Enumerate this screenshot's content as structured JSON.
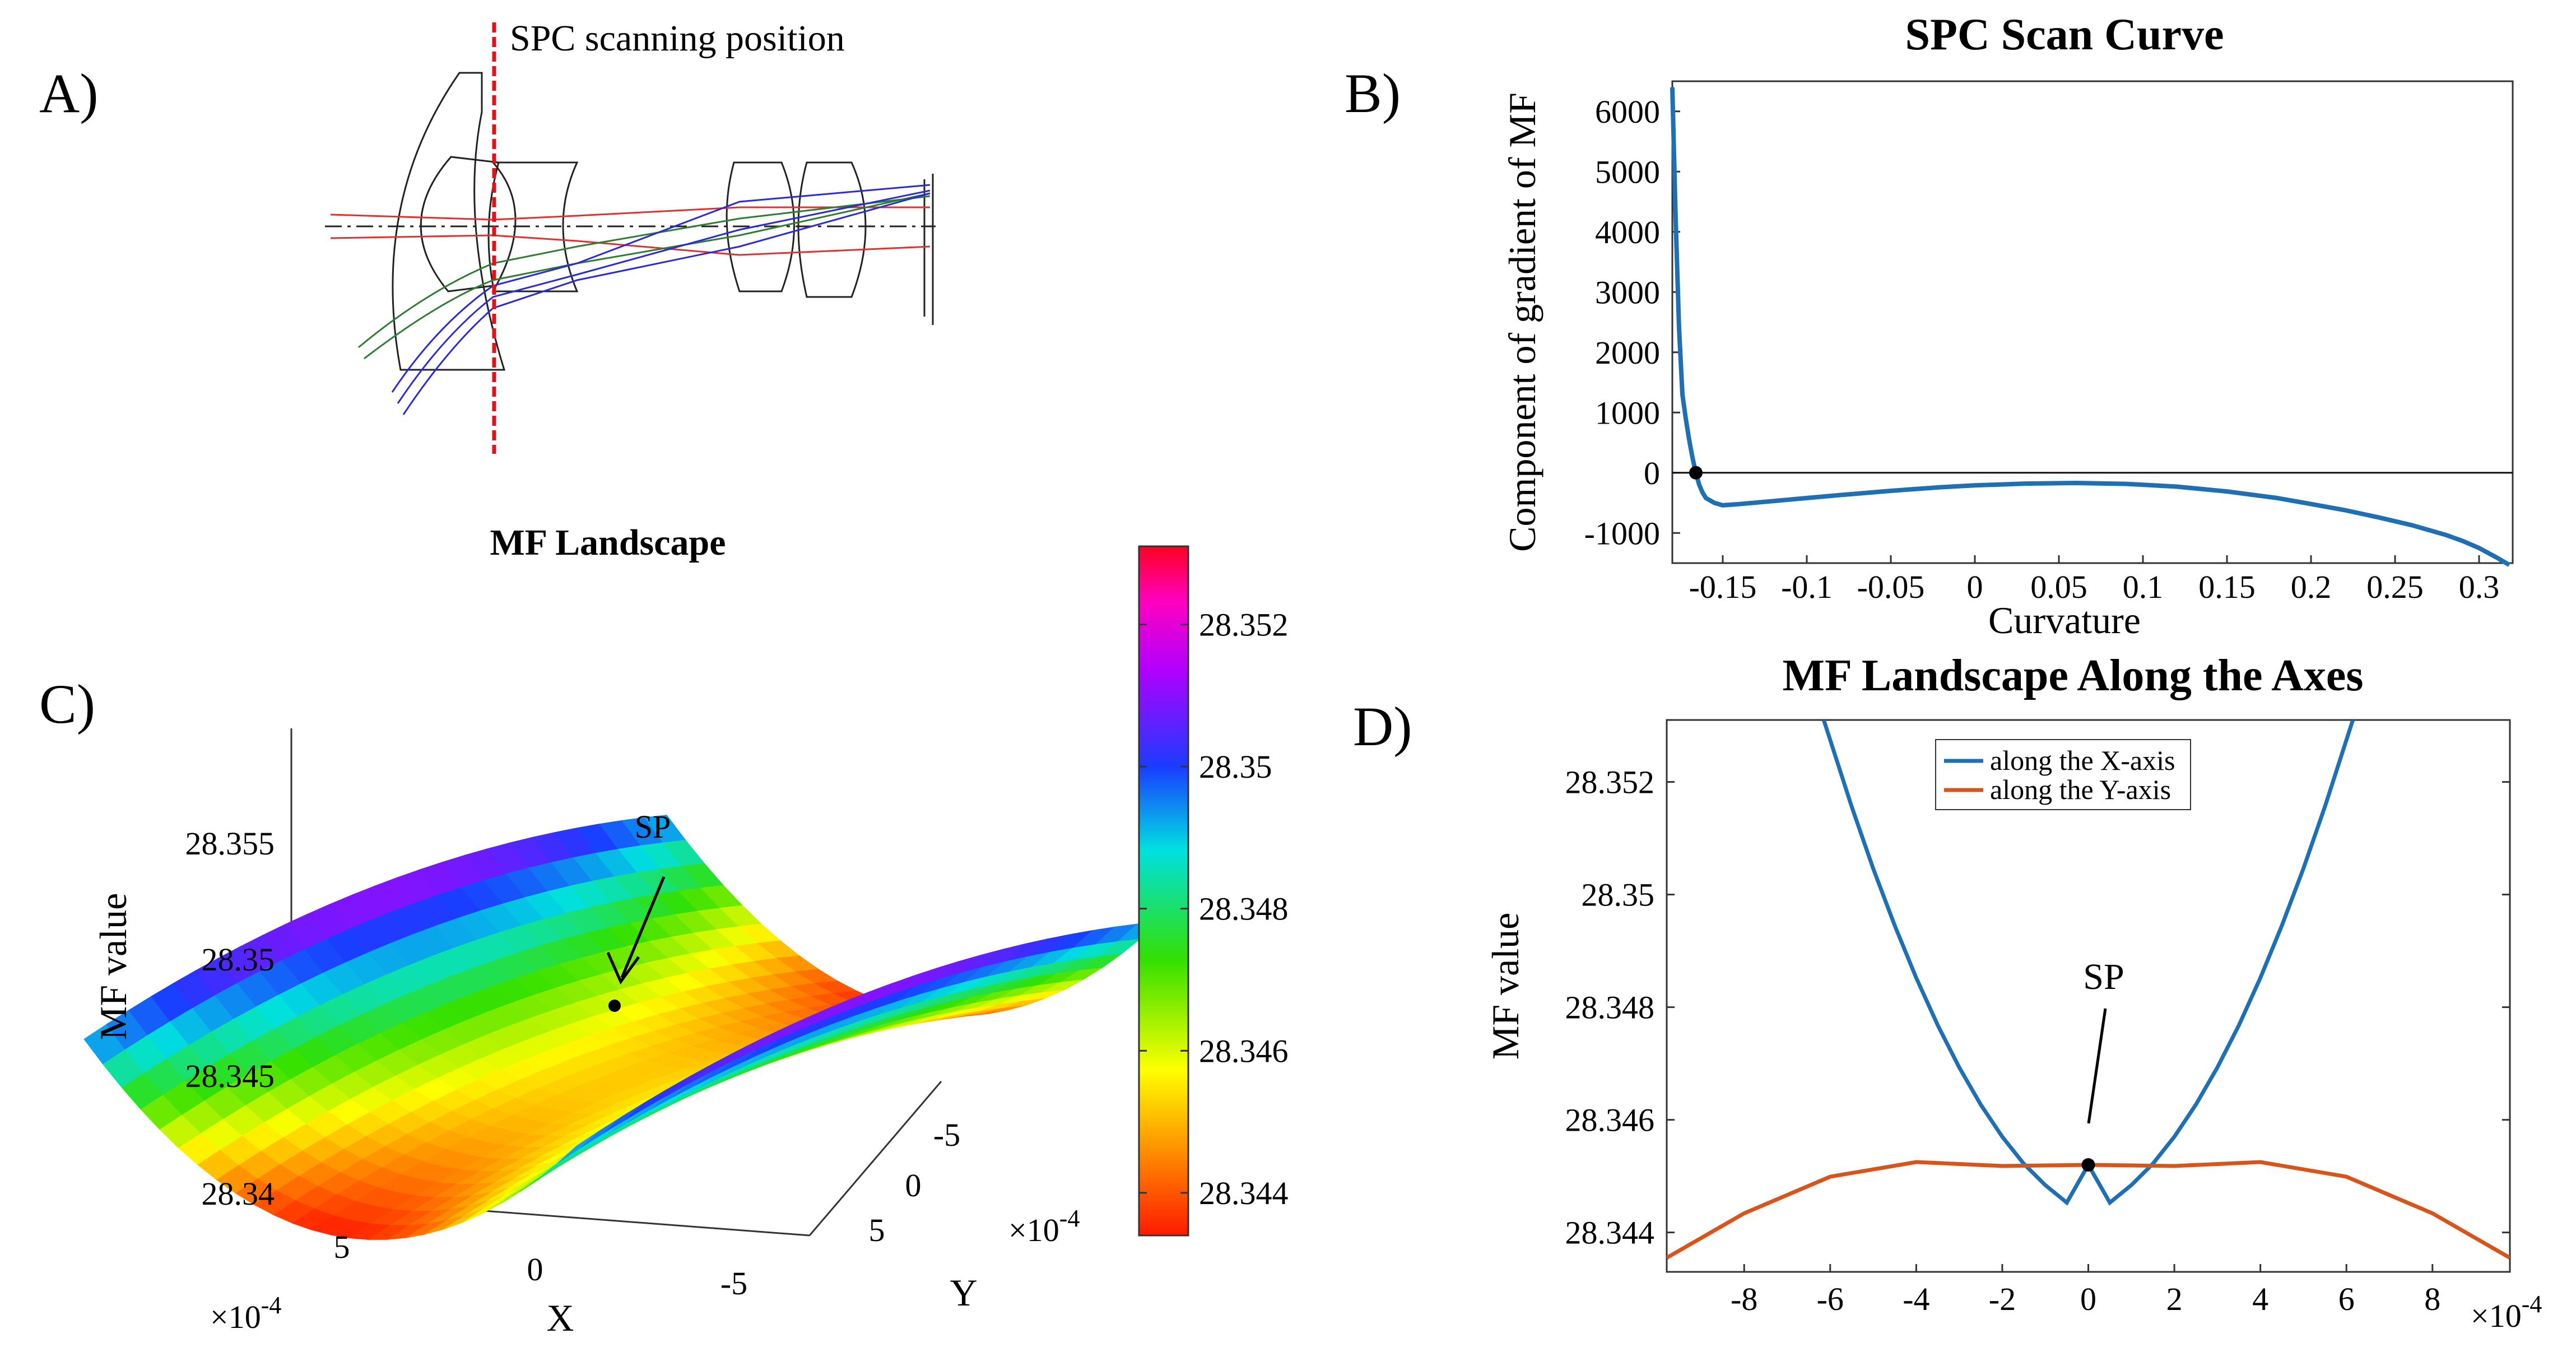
{
  "panels": {
    "a": {
      "label": "A)",
      "annotation": "SPC scanning position"
    },
    "b": {
      "label": "B)"
    },
    "c": {
      "label": "C)"
    },
    "d": {
      "label": "D)"
    }
  },
  "colors": {
    "blue_curve": "#1f6fb5",
    "orange_curve": "#d9541a",
    "scan_line": "#e0131a",
    "ray_red": "#e03030",
    "ray_green": "#2e7d32",
    "ray_blue": "#2a2ad8"
  },
  "chart_data": [
    {
      "id": "spc-scan",
      "type": "line",
      "title": "SPC Scan Curve",
      "xlabel": "Curvature",
      "ylabel": "Component of gradient of MF",
      "xlim": [
        -0.18,
        0.32
      ],
      "ylim": [
        -1500,
        6500
      ],
      "xticks": [
        -0.15,
        -0.1,
        -0.05,
        0,
        0.05,
        0.1,
        0.15,
        0.2,
        0.25,
        0.3
      ],
      "xtick_labels": [
        "-0.15",
        "-0.1",
        "-0.05",
        "0",
        "0.05",
        "0.1",
        "0.15",
        "0.2",
        "0.25",
        "0.3"
      ],
      "yticks": [
        -1000,
        0,
        1000,
        2000,
        3000,
        4000,
        5000,
        6000
      ],
      "ytick_labels": [
        "-1000",
        "0",
        "1000",
        "2000",
        "3000",
        "4000",
        "5000",
        "6000"
      ],
      "zero_line": true,
      "series": [
        {
          "x": [
            -0.18,
            -0.178,
            -0.176,
            -0.174,
            -0.172,
            -0.17,
            -0.168,
            -0.166,
            -0.164,
            -0.162,
            -0.16,
            -0.155,
            -0.15,
            -0.14,
            -0.12,
            -0.1,
            -0.08,
            -0.05,
            -0.02,
            0,
            0.03,
            0.06,
            0.09,
            0.12,
            0.15,
            0.18,
            0.2,
            0.22,
            0.24,
            0.26,
            0.28,
            0.29,
            0.3,
            0.31,
            0.318
          ],
          "y": [
            6400,
            4200,
            2400,
            1300,
            900,
            550,
            250,
            0,
            -200,
            -330,
            -420,
            -500,
            -540,
            -520,
            -470,
            -420,
            -370,
            -300,
            -240,
            -210,
            -180,
            -170,
            -185,
            -230,
            -310,
            -420,
            -520,
            -620,
            -740,
            -870,
            -1030,
            -1130,
            -1250,
            -1400,
            -1530
          ]
        }
      ],
      "highlight_point": {
        "x": -0.166,
        "y": 0
      }
    },
    {
      "id": "mf-landscape-3d",
      "type": "surface",
      "title": "MF Landscape",
      "xlabel": "X",
      "ylabel": "Y",
      "zlabel": "MF value",
      "x_range": [
        -0.0007,
        0.0007
      ],
      "y_range": [
        -0.0007,
        0.0007
      ],
      "x_ticks": [
        "5",
        "0",
        "-5"
      ],
      "y_ticks": [
        "-5",
        "0",
        "5"
      ],
      "z_ticks": [
        "28.355",
        "28.35",
        "28.345",
        "28.34"
      ],
      "x_multiplier": "×10",
      "y_multiplier": "×10",
      "multiplier_exponent": "-4",
      "annotation": "SP",
      "saddle_point": {
        "x": 0,
        "y": 0,
        "z": 28.3452
      },
      "colorbar": {
        "ticks": [
          "28.352",
          "28.35",
          "28.348",
          "28.346",
          "28.344"
        ],
        "tick_values": [
          28.352,
          28.35,
          28.348,
          28.346,
          28.344
        ],
        "range": [
          28.3434,
          28.3531
        ]
      }
    },
    {
      "id": "mf-along-axes",
      "type": "line",
      "title": "MF Landscape Along the Axes",
      "xlabel": "",
      "ylabel": "MF value",
      "xlim": [
        -9.8,
        9.8
      ],
      "ylim": [
        28.3433,
        28.3531
      ],
      "x_multiplier": "×10",
      "multiplier_exponent": "-4",
      "xticks": [
        -8,
        -6,
        -4,
        -2,
        0,
        2,
        4,
        6,
        8
      ],
      "xtick_labels": [
        "-8",
        "-6",
        "-4",
        "-2",
        "0",
        "2",
        "4",
        "6",
        "8"
      ],
      "yticks": [
        28.344,
        28.346,
        28.348,
        28.35,
        28.352
      ],
      "ytick_labels": [
        "28.344",
        "28.346",
        "28.348",
        "28.35",
        "28.352"
      ],
      "series": [
        {
          "name": "along the X-axis",
          "color": "#1f6fb5",
          "x": [
            -6.15,
            -5.5,
            -5,
            -4.5,
            -4,
            -3.5,
            -3,
            -2.5,
            -2,
            -1.5,
            -1,
            -0.5,
            0,
            0.5,
            1,
            1.5,
            2,
            2.5,
            3,
            3.5,
            4,
            4.5,
            5,
            5.5,
            6.15
          ],
          "y": [
            28.3531,
            28.35156,
            28.35046,
            28.34945,
            28.34852,
            28.34768,
            28.34693,
            28.34627,
            28.3457,
            28.34522,
            28.34484,
            28.34453,
            28.3452,
            28.34453,
            28.34484,
            28.34522,
            28.3457,
            28.34627,
            28.34693,
            28.34768,
            28.34852,
            28.34945,
            28.35046,
            28.35156,
            28.3531
          ]
        },
        {
          "name": "along the Y-axis",
          "color": "#d9541a",
          "x": [
            -9.8,
            -8,
            -6,
            -4,
            -2,
            0,
            2,
            4,
            6,
            8,
            9.8
          ],
          "y": [
            28.34355,
            28.34434,
            28.34499,
            28.34525,
            28.34518,
            28.3452,
            28.34518,
            28.34525,
            28.34499,
            28.34434,
            28.34355
          ]
        }
      ],
      "annotation": "SP",
      "highlight_point": {
        "x": 0,
        "y": 28.3452
      }
    }
  ]
}
